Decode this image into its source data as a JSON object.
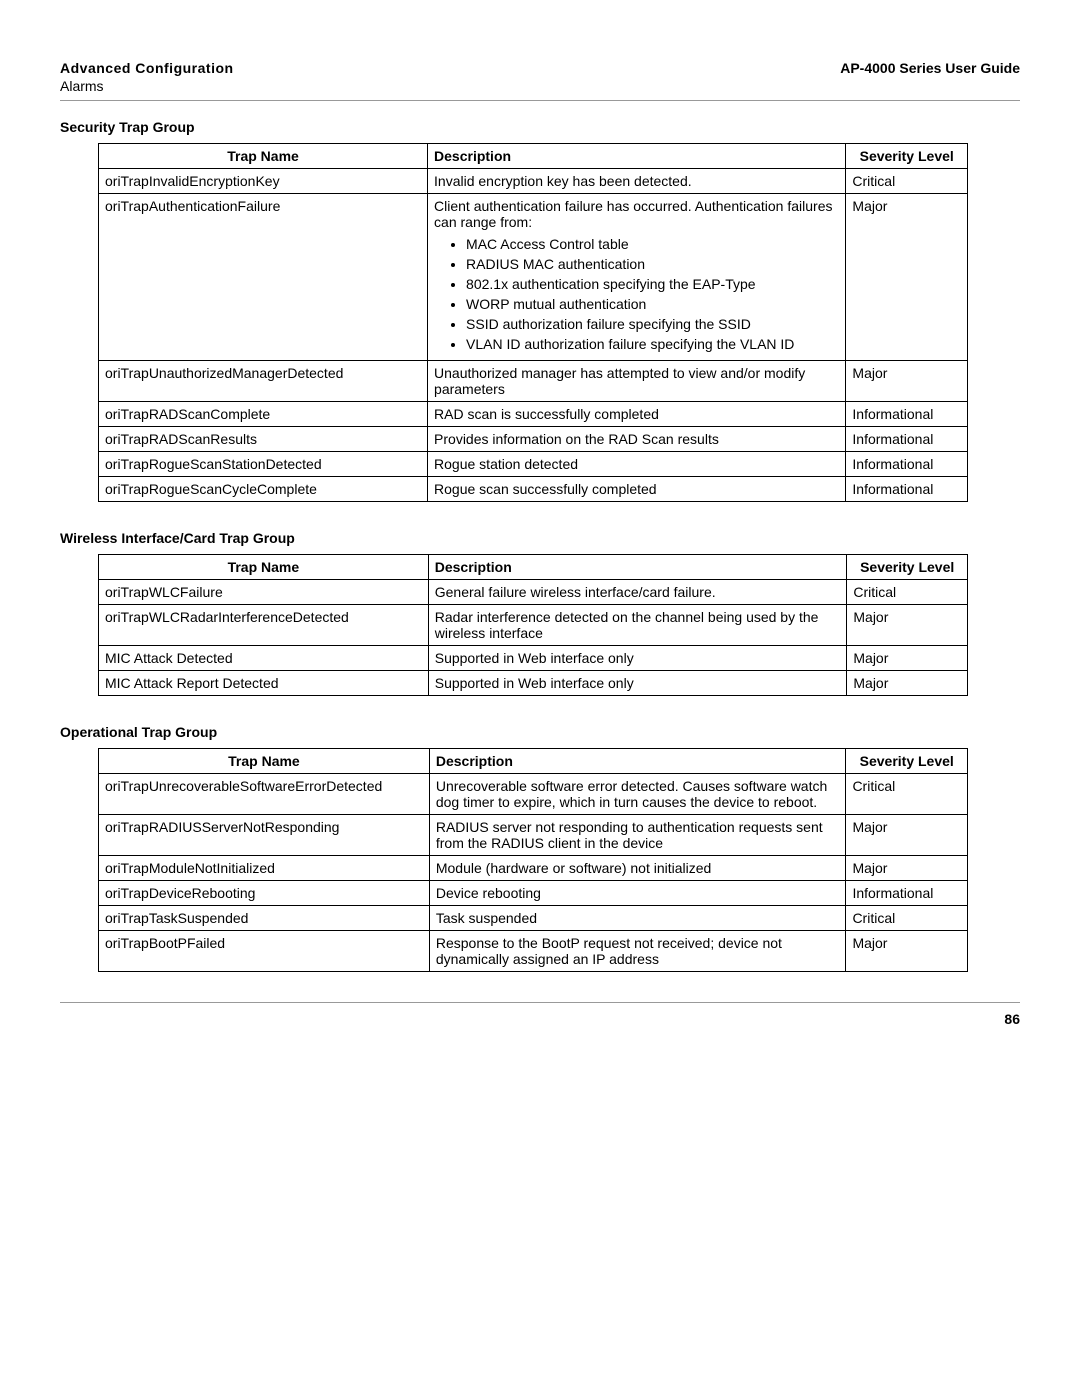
{
  "header": {
    "left_title": "Advanced Configuration",
    "left_sub": "Alarms",
    "right": "AP-4000 Series User Guide"
  },
  "columns": {
    "name": "Trap Name",
    "desc": "Description",
    "sev": "Severity Level"
  },
  "sections": [
    {
      "title": "Security Trap Group",
      "rows": [
        {
          "name": "oriTrapInvalidEncryptionKey",
          "desc": "Invalid encryption key has been detected.",
          "sev": "Critical"
        },
        {
          "name": "oriTrapAuthenticationFailure",
          "desc_intro": "Client authentication failure has occurred. Authentication failures can range from:",
          "bullets": [
            "MAC Access Control table",
            "RADIUS MAC authentication",
            "802.1x authentication specifying the EAP-Type",
            "WORP mutual authentication",
            "SSID authorization failure specifying the SSID",
            "VLAN ID authorization failure specifying the VLAN ID"
          ],
          "sev": "Major"
        },
        {
          "name": "oriTrapUnauthorizedManagerDetected",
          "desc": "Unauthorized manager has attempted to view and/or modify parameters",
          "sev": "Major"
        },
        {
          "name": "oriTrapRADScanComplete",
          "desc": "RAD scan is successfully completed",
          "sev": "Informational"
        },
        {
          "name": "oriTrapRADScanResults",
          "desc": "Provides information on the RAD Scan results",
          "sev": "Informational"
        },
        {
          "name": "oriTrapRogueScanStationDetected",
          "desc": "Rogue station detected",
          "sev": "Informational"
        },
        {
          "name": "oriTrapRogueScanCycleComplete",
          "desc": "Rogue scan successfully completed",
          "sev": "Informational"
        }
      ]
    },
    {
      "title": "Wireless Interface/Card Trap Group",
      "rows": [
        {
          "name": "oriTrapWLCFailure",
          "desc": "General failure wireless interface/card failure.",
          "sev": "Critical"
        },
        {
          "name": "oriTrapWLCRadarInterferenceDetected",
          "desc": "Radar interference detected on the channel being used by the wireless interface",
          "sev": "Major"
        },
        {
          "name": "MIC Attack Detected",
          "desc": "Supported in Web interface only",
          "sev": "Major"
        },
        {
          "name": "MIC Attack Report Detected",
          "desc": "Supported in Web interface only",
          "sev": "Major"
        }
      ]
    },
    {
      "title": "Operational Trap Group",
      "rows": [
        {
          "name": "oriTrapUnrecoverableSoftwareErrorDetected",
          "desc": "Unrecoverable software error detected. Causes software watch dog timer to expire, which in turn causes the device to reboot.",
          "sev": "Critical"
        },
        {
          "name": "oriTrapRADIUSServerNotResponding",
          "desc": "RADIUS server not responding to authentication requests sent from the RADIUS client in the device",
          "sev": "Major"
        },
        {
          "name": "oriTrapModuleNotInitialized",
          "desc": "Module (hardware or software) not initialized",
          "sev": "Major"
        },
        {
          "name": "oriTrapDeviceRebooting",
          "desc": "Device rebooting",
          "sev": "Informational"
        },
        {
          "name": "oriTrapTaskSuspended",
          "desc": "Task suspended",
          "sev": "Critical"
        },
        {
          "name": "oriTrapBootPFailed",
          "desc": "Response to the BootP request not received; device not dynamically assigned an IP address",
          "sev": "Major"
        }
      ]
    }
  ],
  "page_number": "86"
}
